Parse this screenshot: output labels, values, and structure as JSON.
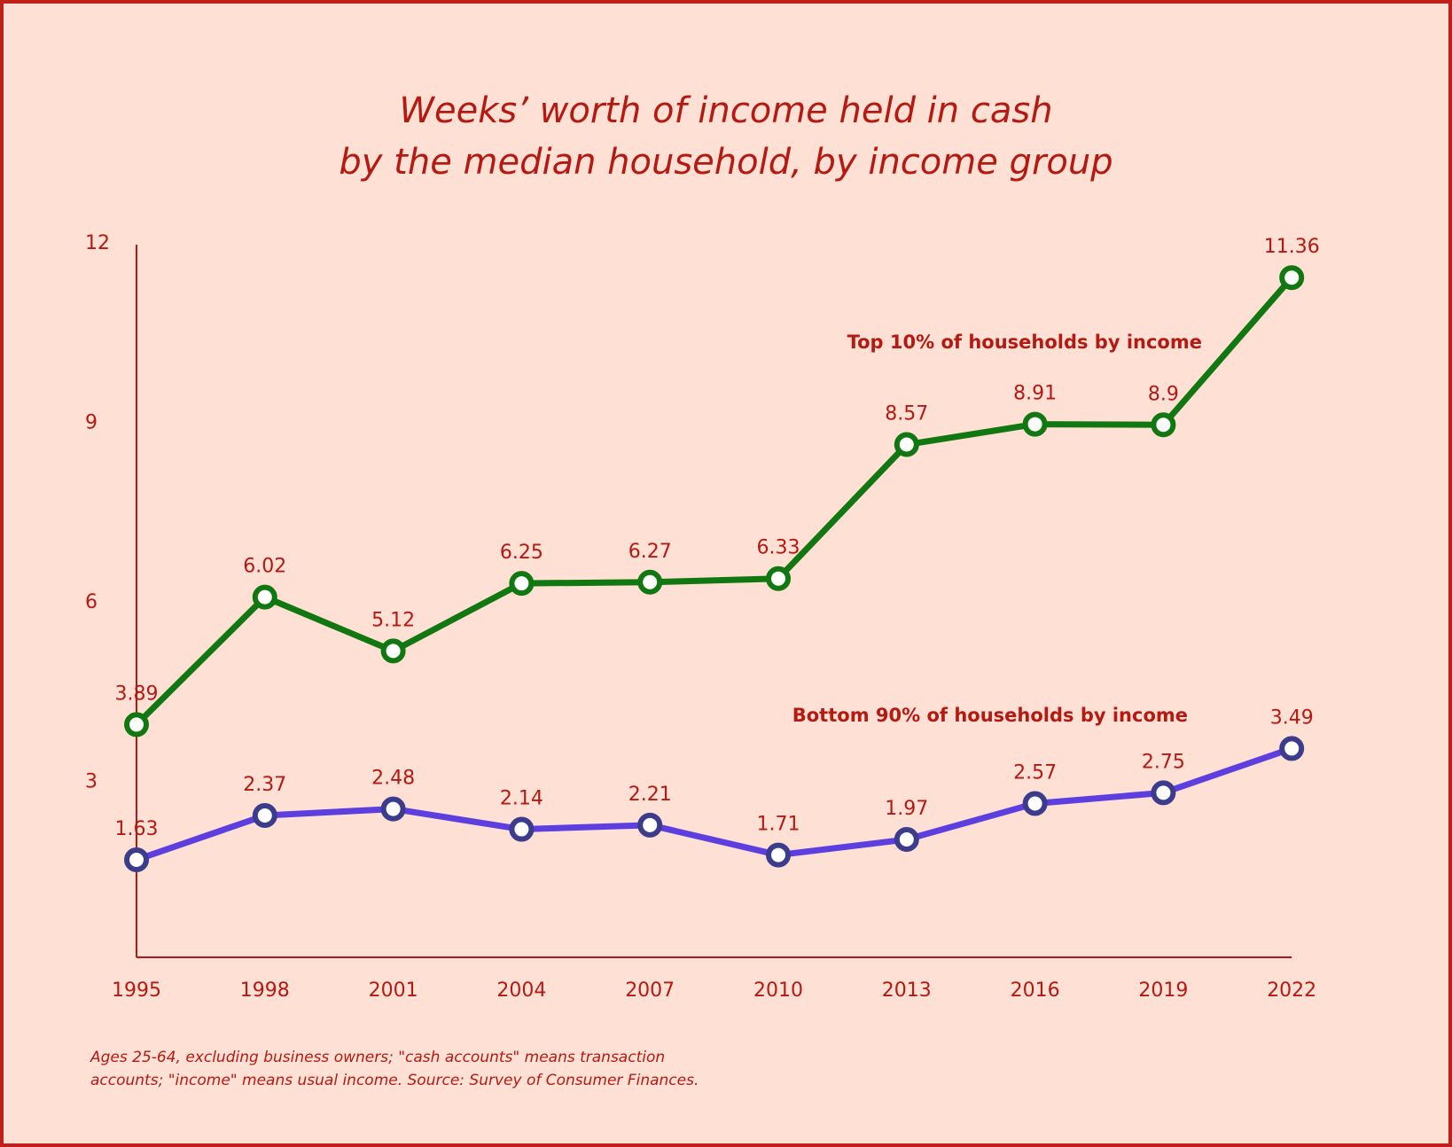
{
  "title": {
    "line1": "Weeks’ worth of income held in cash",
    "line2": "by the median household, by income group"
  },
  "note": {
    "line1": "Ages 25-64, excluding business owners; \"cash accounts\" means transaction",
    "line2": "accounts; \"income\" means usual income. Source: Survey of Consumer Finances."
  },
  "colors": {
    "frame_border": "#c0201a",
    "background": "#ffe0d5",
    "text": "#b51a12",
    "top_line": "#117711",
    "bottom_line": "#5d3fe0",
    "bottom_marker_stroke": "#3c3c8c"
  },
  "chart_data": {
    "type": "line",
    "x": [
      "1995",
      "1998",
      "2001",
      "2004",
      "2007",
      "2010",
      "2013",
      "2016",
      "2019",
      "2022"
    ],
    "yticks": [
      "3",
      "6",
      "9",
      "12"
    ],
    "ylim": [
      0,
      12
    ],
    "grid": false,
    "series": [
      {
        "name": "Top 10% of households by income",
        "values": [
          3.89,
          6.02,
          5.12,
          6.25,
          6.27,
          6.33,
          8.57,
          8.91,
          8.9,
          11.36
        ],
        "labels": [
          "3.89",
          "6.02",
          "5.12",
          "6.25",
          "6.27",
          "6.33",
          "8.57",
          "8.91",
          "8.9",
          "11.36"
        ],
        "color": "#117711"
      },
      {
        "name": "Bottom 90% of households by income",
        "values": [
          1.63,
          2.37,
          2.48,
          2.14,
          2.21,
          1.71,
          1.97,
          2.57,
          2.75,
          3.49
        ],
        "labels": [
          "1.63",
          "2.37",
          "2.48",
          "2.14",
          "2.21",
          "1.71",
          "1.97",
          "2.57",
          "2.75",
          "3.49"
        ],
        "color": "#5d3fe0"
      }
    ]
  }
}
